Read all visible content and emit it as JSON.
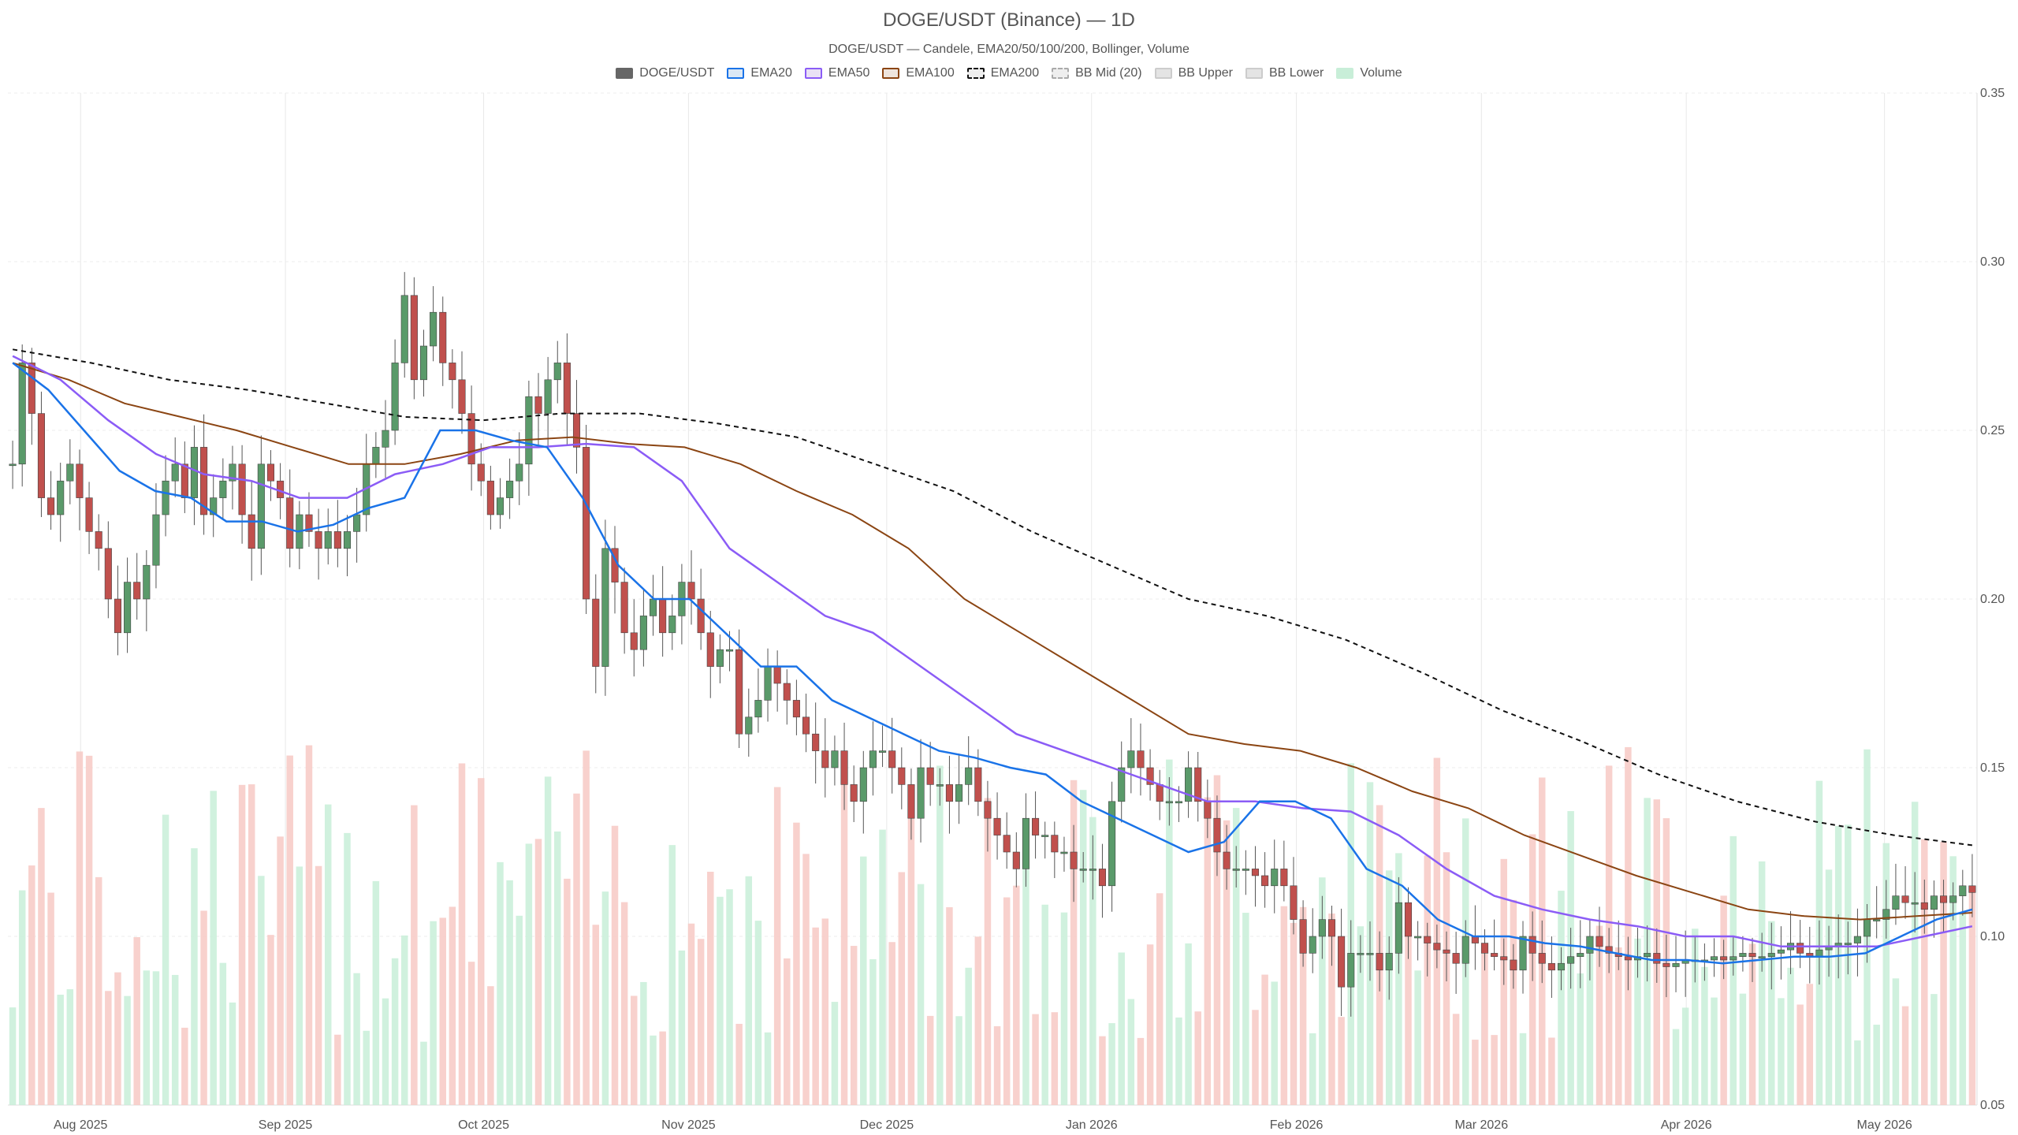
{
  "header": {
    "title": "DOGE/USDT (Binance) — 1D",
    "subtitle": "DOGE/USDT — Candele, EMA20/50/100/200, Bollinger, Volume"
  },
  "legend": [
    {
      "label": "DOGE/USDT",
      "fill": "#666666",
      "border": "#666666",
      "dashed": false
    },
    {
      "label": "EMA20",
      "fill": "#dbe8f5",
      "border": "#1a73e8",
      "dashed": false
    },
    {
      "label": "EMA50",
      "fill": "#e9e1f5",
      "border": "#8b5cf6",
      "dashed": false
    },
    {
      "label": "EMA100",
      "fill": "#eee4dc",
      "border": "#8b4513",
      "dashed": false
    },
    {
      "label": "EMA200",
      "fill": "#eeeeee",
      "border": "#111111",
      "dashed": true
    },
    {
      "label": "BB Mid (20)",
      "fill": "#eeeeee",
      "border": "#aaaaaa",
      "dashed": true
    },
    {
      "label": "BB Upper",
      "fill": "#e4e4e4",
      "border": "#cccccc",
      "dashed": false
    },
    {
      "label": "BB Lower",
      "fill": "#e4e4e4",
      "border": "#cccccc",
      "dashed": false
    },
    {
      "label": "Volume",
      "fill": "#c8eed8",
      "border": "#c8eed8",
      "dashed": false
    }
  ],
  "colors": {
    "up": "#5a9a6a",
    "down": "#c0504d",
    "volume_up": "#c8eed8",
    "volume_down": "#f7c9c4",
    "ema20": "#1a73e8",
    "ema50": "#8b5cf6",
    "ema100": "#8b4513",
    "ema200": "#111111",
    "bb": "#bbbbbb",
    "bbmid": "#999999"
  },
  "chart_data": {
    "type": "candlestick",
    "x_ticks": [
      "Aug 2025",
      "Sep 2025",
      "Oct 2025",
      "Nov 2025",
      "Dec 2025",
      "Jan 2026",
      "Feb 2026",
      "Mar 2026",
      "Apr 2026",
      "May 2026"
    ],
    "x_tick_dates": [
      "2025-08-01",
      "2025-09-01",
      "2025-10-01",
      "2025-11-01",
      "2025-12-01",
      "2026-01-01",
      "2026-02-01",
      "2026-03-01",
      "2026-04-01",
      "2026-05-01"
    ],
    "y_ticks": [
      "0.35",
      "0.30",
      "0.25",
      "0.20",
      "0.15",
      "0.10",
      "0.05"
    ],
    "ylim": [
      0.05,
      0.35
    ],
    "x_range": [
      "2025-07-21",
      "2026-05-15"
    ],
    "grid": true,
    "candles_close": [
      0.24,
      0.27,
      0.255,
      0.23,
      0.225,
      0.235,
      0.24,
      0.23,
      0.22,
      0.215,
      0.2,
      0.19,
      0.205,
      0.2,
      0.21,
      0.225,
      0.235,
      0.24,
      0.23,
      0.245,
      0.225,
      0.23,
      0.235,
      0.24,
      0.225,
      0.215,
      0.24,
      0.235,
      0.23,
      0.215,
      0.225,
      0.22,
      0.215,
      0.22,
      0.215,
      0.22,
      0.225,
      0.24,
      0.245,
      0.25,
      0.27,
      0.29,
      0.265,
      0.275,
      0.285,
      0.27,
      0.265,
      0.255,
      0.24,
      0.235,
      0.225,
      0.23,
      0.235,
      0.24,
      0.26,
      0.255,
      0.265,
      0.27,
      0.255,
      0.245,
      0.2,
      0.18,
      0.215,
      0.205,
      0.19,
      0.185,
      0.195,
      0.2,
      0.19,
      0.195,
      0.205,
      0.2,
      0.19,
      0.18,
      0.185,
      0.185,
      0.16,
      0.165,
      0.17,
      0.18,
      0.175,
      0.17,
      0.165,
      0.16,
      0.155,
      0.15,
      0.155,
      0.145,
      0.14,
      0.15,
      0.155,
      0.155,
      0.15,
      0.145,
      0.135,
      0.15,
      0.145,
      0.145,
      0.14,
      0.145,
      0.15,
      0.14,
      0.135,
      0.13,
      0.125,
      0.12,
      0.135,
      0.13,
      0.13,
      0.125,
      0.125,
      0.12,
      0.12,
      0.12,
      0.115,
      0.14,
      0.15,
      0.155,
      0.15,
      0.145,
      0.14,
      0.14,
      0.14,
      0.15,
      0.14,
      0.135,
      0.125,
      0.12,
      0.12,
      0.12,
      0.118,
      0.115,
      0.12,
      0.115,
      0.105,
      0.095,
      0.1,
      0.105,
      0.1,
      0.085,
      0.095,
      0.095,
      0.095,
      0.09,
      0.095,
      0.11,
      0.1,
      0.1,
      0.098,
      0.096,
      0.095,
      0.092,
      0.1,
      0.098,
      0.095,
      0.094,
      0.093,
      0.09,
      0.1,
      0.095,
      0.092,
      0.09,
      0.092,
      0.094,
      0.095,
      0.1,
      0.097,
      0.095,
      0.094,
      0.093,
      0.094,
      0.095,
      0.092,
      0.091,
      0.092,
      0.093,
      0.093,
      0.093,
      0.094,
      0.093,
      0.094,
      0.095,
      0.094,
      0.094,
      0.095,
      0.096,
      0.098,
      0.095,
      0.094,
      0.096,
      0.097,
      0.098,
      0.098,
      0.1,
      0.105,
      0.105,
      0.108,
      0.112,
      0.11,
      0.11,
      0.108,
      0.112,
      0.11,
      0.112,
      0.115,
      0.113
    ],
    "ema20": [
      0.27,
      0.262,
      0.25,
      0.238,
      0.232,
      0.23,
      0.223,
      0.223,
      0.22,
      0.222,
      0.227,
      0.23,
      0.25,
      0.25,
      0.247,
      0.245,
      0.23,
      0.21,
      0.2,
      0.2,
      0.19,
      0.18,
      0.18,
      0.17,
      0.165,
      0.16,
      0.155,
      0.153,
      0.15,
      0.148,
      0.14,
      0.135,
      0.13,
      0.125,
      0.128,
      0.14,
      0.14,
      0.135,
      0.12,
      0.115,
      0.105,
      0.1,
      0.1,
      0.098,
      0.097,
      0.095,
      0.093,
      0.093,
      0.092,
      0.093,
      0.094,
      0.094,
      0.095,
      0.1,
      0.105,
      0.108
    ],
    "ema50": [
      0.272,
      0.265,
      0.253,
      0.243,
      0.237,
      0.235,
      0.23,
      0.23,
      0.237,
      0.24,
      0.245,
      0.245,
      0.246,
      0.245,
      0.235,
      0.215,
      0.205,
      0.195,
      0.19,
      0.18,
      0.17,
      0.16,
      0.155,
      0.15,
      0.145,
      0.14,
      0.14,
      0.138,
      0.137,
      0.13,
      0.12,
      0.112,
      0.108,
      0.105,
      0.103,
      0.1,
      0.1,
      0.097,
      0.097,
      0.097,
      0.1,
      0.103
    ],
    "ema100": [
      0.27,
      0.265,
      0.258,
      0.254,
      0.25,
      0.245,
      0.24,
      0.24,
      0.243,
      0.247,
      0.248,
      0.246,
      0.245,
      0.24,
      0.232,
      0.225,
      0.215,
      0.2,
      0.19,
      0.18,
      0.17,
      0.16,
      0.157,
      0.155,
      0.15,
      0.143,
      0.138,
      0.13,
      0.124,
      0.118,
      0.113,
      0.108,
      0.106,
      0.105,
      0.106,
      0.107
    ],
    "ema200": [
      0.274,
      0.27,
      0.265,
      0.262,
      0.258,
      0.254,
      0.253,
      0.255,
      0.255,
      0.252,
      0.248,
      0.24,
      0.232,
      0.22,
      0.21,
      0.2,
      0.195,
      0.188,
      0.178,
      0.167,
      0.158,
      0.148,
      0.14,
      0.134,
      0.13,
      0.127
    ]
  }
}
